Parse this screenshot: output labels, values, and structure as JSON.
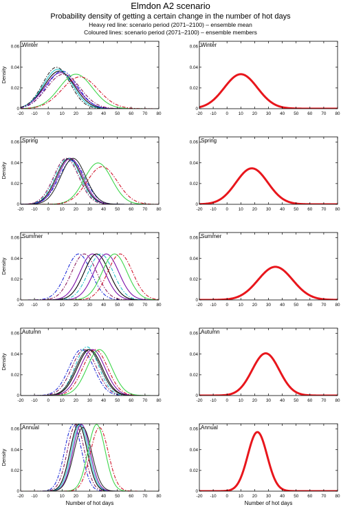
{
  "page": {
    "title": "Elmdon A2 scenario",
    "subtitle": "Probability density of getting a certain change in the number of hot days",
    "note_line1": "Heavy red line: scenario period (2071–2100) – ensemble mean",
    "note_line2": "Coloured lines: scenario period (2071–2100) – ensemble members"
  },
  "colors": {
    "mean_line": "#e8161c",
    "members": [
      "#000000",
      "#7a0da8",
      "#3dd64a",
      "#d1132a",
      "#1fc1c9",
      "#1d2bd9",
      "#8a1a5e",
      "#2b2b2b"
    ]
  },
  "chart_data": [
    {
      "type": "line",
      "panel": "Winter",
      "column": "members",
      "ylabel": "Density",
      "xlabel": "",
      "xlim": [
        -20,
        80
      ],
      "ylim": [
        0,
        0.065
      ],
      "xticks": [
        -20,
        -10,
        0,
        10,
        20,
        30,
        40,
        50,
        60,
        70,
        80
      ],
      "yticks": [
        0,
        0.02,
        0.04,
        0.06
      ],
      "ytick_labels": [
        "0",
        "0.02",
        "0.04",
        "0.06"
      ],
      "series": [
        {
          "mean": 8,
          "sd": 11,
          "color": "#000000",
          "dash": "solid"
        },
        {
          "mean": 9,
          "sd": 11.5,
          "color": "#7a0da8",
          "dash": "solid"
        },
        {
          "mean": 7,
          "sd": 10.5,
          "color": "#1fc1c9",
          "dash": "solid"
        },
        {
          "mean": 10,
          "sd": 11,
          "color": "#1d2bd9",
          "dash": "dashdot"
        },
        {
          "mean": 11,
          "sd": 12,
          "color": "#8a1a5e",
          "dash": "dashdot"
        },
        {
          "mean": 20,
          "sd": 12,
          "color": "#3dd64a",
          "dash": "solid"
        },
        {
          "mean": 23,
          "sd": 13,
          "color": "#d1132a",
          "dash": "dashdot"
        },
        {
          "mean": 6,
          "sd": 10,
          "color": "#2b2b2b",
          "dash": "dashdot"
        }
      ]
    },
    {
      "type": "line",
      "panel": "Winter",
      "column": "mean",
      "ylabel": "",
      "xlabel": "",
      "xlim": [
        -20,
        80
      ],
      "ylim": [
        0,
        0.065
      ],
      "xticks": [
        -20,
        -10,
        0,
        10,
        20,
        30,
        40,
        50,
        60,
        70,
        80
      ],
      "yticks": [
        0,
        0.02,
        0.04,
        0.06
      ],
      "ytick_labels": [
        "0",
        "0.02",
        "0.04",
        "0.06"
      ],
      "series": [
        {
          "mean": 10,
          "sd": 12,
          "color": "#e8161c",
          "dash": "solid",
          "heavy": true
        }
      ]
    },
    {
      "type": "line",
      "panel": "Spring",
      "column": "members",
      "ylabel": "Density",
      "xlabel": "",
      "xlim": [
        -20,
        80
      ],
      "ylim": [
        0,
        0.065
      ],
      "xticks": [
        -20,
        -10,
        0,
        10,
        20,
        30,
        40,
        50,
        60,
        70,
        80
      ],
      "yticks": [
        0,
        0.02,
        0.04,
        0.06
      ],
      "ytick_labels": [
        "0",
        "0.02",
        "0.04",
        "0.06"
      ],
      "series": [
        {
          "mean": 15,
          "sd": 9,
          "color": "#000000",
          "dash": "solid"
        },
        {
          "mean": 16,
          "sd": 9,
          "color": "#7a0da8",
          "dash": "solid"
        },
        {
          "mean": 14,
          "sd": 9,
          "color": "#1fc1c9",
          "dash": "dashdot"
        },
        {
          "mean": 17,
          "sd": 9.5,
          "color": "#1d2bd9",
          "dash": "dashdot"
        },
        {
          "mean": 13,
          "sd": 9,
          "color": "#8a1a5e",
          "dash": "dashdot"
        },
        {
          "mean": 36,
          "sd": 10,
          "color": "#3dd64a",
          "dash": "solid"
        },
        {
          "mean": 39,
          "sd": 11,
          "color": "#d1132a",
          "dash": "dashdot"
        },
        {
          "mean": 18,
          "sd": 9,
          "color": "#2b2b2b",
          "dash": "solid"
        }
      ]
    },
    {
      "type": "line",
      "panel": "Spring",
      "column": "mean",
      "ylabel": "",
      "xlabel": "",
      "xlim": [
        -20,
        80
      ],
      "ylim": [
        0,
        0.065
      ],
      "xticks": [
        -20,
        -10,
        0,
        10,
        20,
        30,
        40,
        50,
        60,
        70,
        80
      ],
      "yticks": [
        0,
        0.02,
        0.04,
        0.06
      ],
      "ytick_labels": [
        "0",
        "0.02",
        "0.04",
        "0.06"
      ],
      "series": [
        {
          "mean": 18,
          "sd": 11.5,
          "color": "#e8161c",
          "dash": "solid",
          "heavy": true
        }
      ]
    },
    {
      "type": "line",
      "panel": "Summer",
      "column": "members",
      "ylabel": "Density",
      "xlabel": "",
      "xlim": [
        -20,
        80
      ],
      "ylim": [
        0,
        0.065
      ],
      "xticks": [
        -20,
        -10,
        0,
        10,
        20,
        30,
        40,
        50,
        60,
        70,
        80
      ],
      "yticks": [
        0,
        0.02,
        0.04,
        0.06
      ],
      "ytick_labels": [
        "0",
        "0.02",
        "0.04",
        "0.06"
      ],
      "series": [
        {
          "mean": 22,
          "sd": 9,
          "color": "#1d2bd9",
          "dash": "dashdot"
        },
        {
          "mean": 26,
          "sd": 9,
          "color": "#8a1a5e",
          "dash": "dashdot"
        },
        {
          "mean": 32,
          "sd": 9,
          "color": "#7a0da8",
          "dash": "solid"
        },
        {
          "mean": 35,
          "sd": 9,
          "color": "#000000",
          "dash": "solid"
        },
        {
          "mean": 38,
          "sd": 9,
          "color": "#1fc1c9",
          "dash": "dashdot"
        },
        {
          "mean": 42,
          "sd": 9,
          "color": "#7a0da8",
          "dash": "solid"
        },
        {
          "mean": 48,
          "sd": 9,
          "color": "#3dd64a",
          "dash": "solid"
        },
        {
          "mean": 52,
          "sd": 9,
          "color": "#d1132a",
          "dash": "dashdot"
        }
      ]
    },
    {
      "type": "line",
      "panel": "Summer",
      "column": "mean",
      "ylabel": "",
      "xlabel": "",
      "xlim": [
        -20,
        80
      ],
      "ylim": [
        0,
        0.065
      ],
      "xticks": [
        -20,
        -10,
        0,
        10,
        20,
        30,
        40,
        50,
        60,
        70,
        80
      ],
      "yticks": [
        0,
        0.02,
        0.04,
        0.06
      ],
      "ytick_labels": [
        "0",
        "0.02",
        "0.04",
        "0.06"
      ],
      "series": [
        {
          "mean": 35,
          "sd": 12.5,
          "color": "#e8161c",
          "dash": "solid",
          "heavy": true
        }
      ]
    },
    {
      "type": "line",
      "panel": "Autumn",
      "column": "members",
      "ylabel": "Density",
      "xlabel": "",
      "xlim": [
        -20,
        80
      ],
      "ylim": [
        0,
        0.065
      ],
      "xticks": [
        -20,
        -10,
        0,
        10,
        20,
        30,
        40,
        50,
        60,
        70,
        80
      ],
      "yticks": [
        0,
        0.02,
        0.04,
        0.06
      ],
      "ytick_labels": [
        "0",
        "0.02",
        "0.04",
        "0.06"
      ],
      "series": [
        {
          "mean": 24,
          "sd": 9,
          "color": "#1d2bd9",
          "dash": "dashdot"
        },
        {
          "mean": 26,
          "sd": 9,
          "color": "#8a1a5e",
          "dash": "dashdot"
        },
        {
          "mean": 28,
          "sd": 8.5,
          "color": "#1fc1c9",
          "dash": "dashdot"
        },
        {
          "mean": 30,
          "sd": 9,
          "color": "#000000",
          "dash": "solid"
        },
        {
          "mean": 32,
          "sd": 9,
          "color": "#7a0da8",
          "dash": "solid"
        },
        {
          "mean": 34,
          "sd": 9,
          "color": "#d1132a",
          "dash": "dashdot"
        },
        {
          "mean": 37,
          "sd": 9,
          "color": "#3dd64a",
          "dash": "solid"
        },
        {
          "mean": 29,
          "sd": 9,
          "color": "#2b2b2b",
          "dash": "solid"
        }
      ]
    },
    {
      "type": "line",
      "panel": "Autumn",
      "column": "mean",
      "ylabel": "",
      "xlabel": "",
      "xlim": [
        -20,
        80
      ],
      "ylim": [
        0,
        0.065
      ],
      "xticks": [
        -20,
        -10,
        0,
        10,
        20,
        30,
        40,
        50,
        60,
        70,
        80
      ],
      "yticks": [
        0,
        0.02,
        0.04,
        0.06
      ],
      "ytick_labels": [
        "0",
        "0.02",
        "0.04",
        "0.06"
      ],
      "series": [
        {
          "mean": 28,
          "sd": 9.8,
          "color": "#e8161c",
          "dash": "solid",
          "heavy": true
        }
      ]
    },
    {
      "type": "line",
      "panel": "Annual",
      "column": "members",
      "ylabel": "Density",
      "xlabel": "Number of hot days",
      "xlim": [
        -20,
        80
      ],
      "ylim": [
        0,
        0.065
      ],
      "xticks": [
        -20,
        -10,
        0,
        10,
        20,
        30,
        40,
        50,
        60,
        70,
        80
      ],
      "yticks": [
        0,
        0.02,
        0.04,
        0.06
      ],
      "ytick_labels": [
        "0",
        "0.02",
        "0.04",
        "0.06"
      ],
      "series": [
        {
          "mean": 18,
          "sd": 6.2,
          "color": "#1d2bd9",
          "dash": "dashdot"
        },
        {
          "mean": 20,
          "sd": 6.2,
          "color": "#8a1a5e",
          "dash": "dashdot"
        },
        {
          "mean": 22,
          "sd": 6.2,
          "color": "#000000",
          "dash": "solid"
        },
        {
          "mean": 23,
          "sd": 6.2,
          "color": "#1fc1c9",
          "dash": "solid"
        },
        {
          "mean": 24,
          "sd": 6.2,
          "color": "#7a0da8",
          "dash": "solid"
        },
        {
          "mean": 25,
          "sd": 6.5,
          "color": "#2b2b2b",
          "dash": "solid"
        },
        {
          "mean": 35,
          "sd": 6.2,
          "color": "#3dd64a",
          "dash": "solid"
        },
        {
          "mean": 37,
          "sd": 6.5,
          "color": "#d1132a",
          "dash": "dashdot"
        }
      ]
    },
    {
      "type": "line",
      "panel": "Annual",
      "column": "mean",
      "ylabel": "",
      "xlabel": "Number of hot days",
      "xlim": [
        -20,
        80
      ],
      "ylim": [
        0,
        0.065
      ],
      "xticks": [
        -20,
        -10,
        0,
        10,
        20,
        30,
        40,
        50,
        60,
        70,
        80
      ],
      "yticks": [
        0,
        0.02,
        0.04,
        0.06
      ],
      "ytick_labels": [
        "0",
        "0.02",
        "0.04",
        "0.06"
      ],
      "series": [
        {
          "mean": 22,
          "sd": 7,
          "color": "#e8161c",
          "dash": "solid",
          "heavy": true
        }
      ]
    }
  ]
}
